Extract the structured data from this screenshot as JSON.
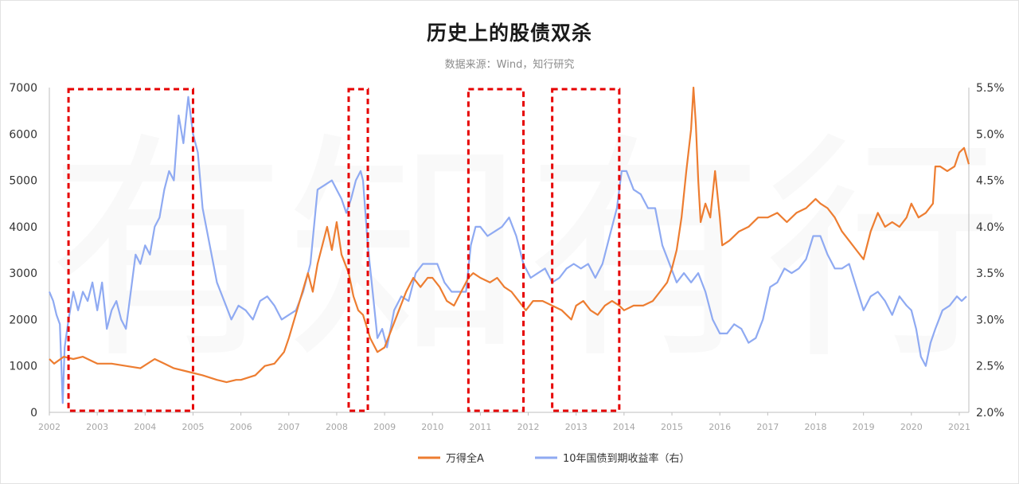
{
  "title": "历史上的股债双杀",
  "subtitle": "数据来源：Wind，知行研究",
  "watermark": "有知有行",
  "colors": {
    "equity": "#ed7d31",
    "bond": "#8faaf2",
    "highlight": "#e60000",
    "axis": "#bfbfbf"
  },
  "chart_data": {
    "type": "line",
    "x_ticks": [
      "2002",
      "2003",
      "2004",
      "2005",
      "2006",
      "2007",
      "2008",
      "2009",
      "2010",
      "2011",
      "2012",
      "2013",
      "2014",
      "2015",
      "2016",
      "2017",
      "2018",
      "2019",
      "2020",
      "2021"
    ],
    "y_left": {
      "min": 0,
      "max": 7000,
      "ticks": [
        "0",
        "1000",
        "2000",
        "3000",
        "4000",
        "5000",
        "6000",
        "7000"
      ]
    },
    "y_right": {
      "min": 2.0,
      "max": 5.5,
      "ticks": [
        "2.0%",
        "2.5%",
        "3.0%",
        "3.5%",
        "4.0%",
        "4.5%",
        "5.0%",
        "5.5%"
      ]
    },
    "highlight_periods": [
      {
        "start": 2002.4,
        "end": 2005.0
      },
      {
        "start": 2008.25,
        "end": 2008.65
      },
      {
        "start": 2010.75,
        "end": 2011.9
      },
      {
        "start": 2012.5,
        "end": 2013.9
      }
    ],
    "series": [
      {
        "name": "万得全A",
        "axis": "left",
        "points": [
          [
            2002.0,
            1150
          ],
          [
            2002.1,
            1050
          ],
          [
            2002.3,
            1200
          ],
          [
            2002.5,
            1150
          ],
          [
            2002.7,
            1200
          ],
          [
            2002.9,
            1100
          ],
          [
            2003.0,
            1050
          ],
          [
            2003.3,
            1050
          ],
          [
            2003.6,
            1000
          ],
          [
            2003.9,
            950
          ],
          [
            2004.2,
            1150
          ],
          [
            2004.4,
            1050
          ],
          [
            2004.6,
            950
          ],
          [
            2004.8,
            900
          ],
          [
            2005.0,
            850
          ],
          [
            2005.2,
            800
          ],
          [
            2005.5,
            700
          ],
          [
            2005.7,
            650
          ],
          [
            2005.9,
            700
          ],
          [
            2006.0,
            700
          ],
          [
            2006.3,
            800
          ],
          [
            2006.5,
            1000
          ],
          [
            2006.7,
            1050
          ],
          [
            2006.9,
            1300
          ],
          [
            2007.0,
            1600
          ],
          [
            2007.2,
            2300
          ],
          [
            2007.4,
            3000
          ],
          [
            2007.5,
            2600
          ],
          [
            2007.6,
            3200
          ],
          [
            2007.8,
            4000
          ],
          [
            2007.9,
            3500
          ],
          [
            2008.0,
            4100
          ],
          [
            2008.1,
            3400
          ],
          [
            2008.25,
            3000
          ],
          [
            2008.35,
            2500
          ],
          [
            2008.45,
            2200
          ],
          [
            2008.55,
            2100
          ],
          [
            2008.7,
            1600
          ],
          [
            2008.85,
            1300
          ],
          [
            2009.0,
            1400
          ],
          [
            2009.15,
            1800
          ],
          [
            2009.3,
            2200
          ],
          [
            2009.45,
            2600
          ],
          [
            2009.6,
            2900
          ],
          [
            2009.75,
            2700
          ],
          [
            2009.9,
            2900
          ],
          [
            2010.0,
            2900
          ],
          [
            2010.15,
            2700
          ],
          [
            2010.3,
            2400
          ],
          [
            2010.45,
            2300
          ],
          [
            2010.6,
            2600
          ],
          [
            2010.75,
            2900
          ],
          [
            2010.85,
            3000
          ],
          [
            2011.0,
            2900
          ],
          [
            2011.2,
            2800
          ],
          [
            2011.35,
            2900
          ],
          [
            2011.5,
            2700
          ],
          [
            2011.65,
            2600
          ],
          [
            2011.8,
            2400
          ],
          [
            2011.95,
            2200
          ],
          [
            2012.1,
            2400
          ],
          [
            2012.3,
            2400
          ],
          [
            2012.5,
            2300
          ],
          [
            2012.7,
            2200
          ],
          [
            2012.9,
            2000
          ],
          [
            2013.0,
            2300
          ],
          [
            2013.15,
            2400
          ],
          [
            2013.3,
            2200
          ],
          [
            2013.45,
            2100
          ],
          [
            2013.6,
            2300
          ],
          [
            2013.75,
            2400
          ],
          [
            2013.9,
            2300
          ],
          [
            2014.0,
            2200
          ],
          [
            2014.2,
            2300
          ],
          [
            2014.4,
            2300
          ],
          [
            2014.6,
            2400
          ],
          [
            2014.75,
            2600
          ],
          [
            2014.9,
            2800
          ],
          [
            2015.0,
            3100
          ],
          [
            2015.1,
            3500
          ],
          [
            2015.2,
            4200
          ],
          [
            2015.3,
            5200
          ],
          [
            2015.4,
            6100
          ],
          [
            2015.45,
            7000
          ],
          [
            2015.5,
            6200
          ],
          [
            2015.55,
            5000
          ],
          [
            2015.6,
            4100
          ],
          [
            2015.7,
            4500
          ],
          [
            2015.8,
            4200
          ],
          [
            2015.9,
            5200
          ],
          [
            2016.0,
            4200
          ],
          [
            2016.05,
            3600
          ],
          [
            2016.2,
            3700
          ],
          [
            2016.4,
            3900
          ],
          [
            2016.6,
            4000
          ],
          [
            2016.8,
            4200
          ],
          [
            2017.0,
            4200
          ],
          [
            2017.2,
            4300
          ],
          [
            2017.4,
            4100
          ],
          [
            2017.6,
            4300
          ],
          [
            2017.8,
            4400
          ],
          [
            2018.0,
            4600
          ],
          [
            2018.1,
            4500
          ],
          [
            2018.25,
            4400
          ],
          [
            2018.4,
            4200
          ],
          [
            2018.55,
            3900
          ],
          [
            2018.7,
            3700
          ],
          [
            2018.85,
            3500
          ],
          [
            2019.0,
            3300
          ],
          [
            2019.15,
            3900
          ],
          [
            2019.3,
            4300
          ],
          [
            2019.45,
            4000
          ],
          [
            2019.6,
            4100
          ],
          [
            2019.75,
            4000
          ],
          [
            2019.9,
            4200
          ],
          [
            2020.0,
            4500
          ],
          [
            2020.15,
            4200
          ],
          [
            2020.3,
            4300
          ],
          [
            2020.45,
            4500
          ],
          [
            2020.5,
            5300
          ],
          [
            2020.6,
            5300
          ],
          [
            2020.75,
            5200
          ],
          [
            2020.9,
            5300
          ],
          [
            2021.0,
            5600
          ],
          [
            2021.1,
            5700
          ],
          [
            2021.2,
            5350
          ]
        ]
      },
      {
        "name": "10年国债到期收益率（右）",
        "axis": "right",
        "points": [
          [
            2002.0,
            3.3
          ],
          [
            2002.08,
            3.2
          ],
          [
            2002.15,
            3.05
          ],
          [
            2002.22,
            2.95
          ],
          [
            2002.28,
            2.1
          ],
          [
            2002.32,
            2.7
          ],
          [
            2002.4,
            3.0
          ],
          [
            2002.5,
            3.3
          ],
          [
            2002.6,
            3.1
          ],
          [
            2002.7,
            3.3
          ],
          [
            2002.8,
            3.2
          ],
          [
            2002.9,
            3.4
          ],
          [
            2003.0,
            3.1
          ],
          [
            2003.1,
            3.4
          ],
          [
            2003.2,
            2.9
          ],
          [
            2003.3,
            3.1
          ],
          [
            2003.4,
            3.2
          ],
          [
            2003.5,
            3.0
          ],
          [
            2003.6,
            2.9
          ],
          [
            2003.7,
            3.3
          ],
          [
            2003.8,
            3.7
          ],
          [
            2003.9,
            3.6
          ],
          [
            2004.0,
            3.8
          ],
          [
            2004.1,
            3.7
          ],
          [
            2004.2,
            4.0
          ],
          [
            2004.3,
            4.1
          ],
          [
            2004.4,
            4.4
          ],
          [
            2004.5,
            4.6
          ],
          [
            2004.6,
            4.5
          ],
          [
            2004.7,
            5.2
          ],
          [
            2004.8,
            4.9
          ],
          [
            2004.9,
            5.4
          ],
          [
            2005.0,
            5.0
          ],
          [
            2005.1,
            4.8
          ],
          [
            2005.2,
            4.2
          ],
          [
            2005.35,
            3.8
          ],
          [
            2005.5,
            3.4
          ],
          [
            2005.65,
            3.2
          ],
          [
            2005.8,
            3.0
          ],
          [
            2005.95,
            3.15
          ],
          [
            2006.1,
            3.1
          ],
          [
            2006.25,
            3.0
          ],
          [
            2006.4,
            3.2
          ],
          [
            2006.55,
            3.25
          ],
          [
            2006.7,
            3.15
          ],
          [
            2006.85,
            3.0
          ],
          [
            2007.0,
            3.05
          ],
          [
            2007.15,
            3.1
          ],
          [
            2007.3,
            3.3
          ],
          [
            2007.45,
            3.6
          ],
          [
            2007.6,
            4.4
          ],
          [
            2007.75,
            4.45
          ],
          [
            2007.9,
            4.5
          ],
          [
            2008.0,
            4.4
          ],
          [
            2008.1,
            4.3
          ],
          [
            2008.2,
            4.15
          ],
          [
            2008.3,
            4.3
          ],
          [
            2008.4,
            4.5
          ],
          [
            2008.5,
            4.6
          ],
          [
            2008.55,
            4.5
          ],
          [
            2008.65,
            3.8
          ],
          [
            2008.75,
            3.3
          ],
          [
            2008.85,
            2.8
          ],
          [
            2008.95,
            2.9
          ],
          [
            2009.05,
            2.7
          ],
          [
            2009.2,
            3.1
          ],
          [
            2009.35,
            3.25
          ],
          [
            2009.5,
            3.2
          ],
          [
            2009.65,
            3.5
          ],
          [
            2009.8,
            3.6
          ],
          [
            2009.95,
            3.6
          ],
          [
            2010.1,
            3.6
          ],
          [
            2010.25,
            3.4
          ],
          [
            2010.4,
            3.3
          ],
          [
            2010.55,
            3.3
          ],
          [
            2010.7,
            3.3
          ],
          [
            2010.8,
            3.8
          ],
          [
            2010.9,
            4.0
          ],
          [
            2011.0,
            4.0
          ],
          [
            2011.15,
            3.9
          ],
          [
            2011.3,
            3.95
          ],
          [
            2011.45,
            4.0
          ],
          [
            2011.6,
            4.1
          ],
          [
            2011.75,
            3.9
          ],
          [
            2011.9,
            3.6
          ],
          [
            2012.05,
            3.45
          ],
          [
            2012.2,
            3.5
          ],
          [
            2012.35,
            3.55
          ],
          [
            2012.5,
            3.4
          ],
          [
            2012.65,
            3.45
          ],
          [
            2012.8,
            3.55
          ],
          [
            2012.95,
            3.6
          ],
          [
            2013.1,
            3.55
          ],
          [
            2013.25,
            3.6
          ],
          [
            2013.4,
            3.45
          ],
          [
            2013.55,
            3.6
          ],
          [
            2013.7,
            3.9
          ],
          [
            2013.85,
            4.2
          ],
          [
            2013.95,
            4.6
          ],
          [
            2014.05,
            4.6
          ],
          [
            2014.2,
            4.4
          ],
          [
            2014.35,
            4.35
          ],
          [
            2014.5,
            4.2
          ],
          [
            2014.65,
            4.2
          ],
          [
            2014.8,
            3.8
          ],
          [
            2014.95,
            3.6
          ],
          [
            2015.1,
            3.4
          ],
          [
            2015.25,
            3.5
          ],
          [
            2015.4,
            3.4
          ],
          [
            2015.55,
            3.5
          ],
          [
            2015.7,
            3.3
          ],
          [
            2015.85,
            3.0
          ],
          [
            2016.0,
            2.85
          ],
          [
            2016.15,
            2.85
          ],
          [
            2016.3,
            2.95
          ],
          [
            2016.45,
            2.9
          ],
          [
            2016.6,
            2.75
          ],
          [
            2016.75,
            2.8
          ],
          [
            2016.9,
            3.0
          ],
          [
            2017.05,
            3.35
          ],
          [
            2017.2,
            3.4
          ],
          [
            2017.35,
            3.55
          ],
          [
            2017.5,
            3.5
          ],
          [
            2017.65,
            3.55
          ],
          [
            2017.8,
            3.65
          ],
          [
            2017.95,
            3.9
          ],
          [
            2018.1,
            3.9
          ],
          [
            2018.25,
            3.7
          ],
          [
            2018.4,
            3.55
          ],
          [
            2018.55,
            3.55
          ],
          [
            2018.7,
            3.6
          ],
          [
            2018.85,
            3.35
          ],
          [
            2019.0,
            3.1
          ],
          [
            2019.15,
            3.25
          ],
          [
            2019.3,
            3.3
          ],
          [
            2019.45,
            3.2
          ],
          [
            2019.6,
            3.05
          ],
          [
            2019.75,
            3.25
          ],
          [
            2019.9,
            3.15
          ],
          [
            2020.0,
            3.1
          ],
          [
            2020.1,
            2.9
          ],
          [
            2020.2,
            2.6
          ],
          [
            2020.3,
            2.5
          ],
          [
            2020.4,
            2.75
          ],
          [
            2020.5,
            2.9
          ],
          [
            2020.65,
            3.1
          ],
          [
            2020.8,
            3.15
          ],
          [
            2020.95,
            3.25
          ],
          [
            2021.05,
            3.2
          ],
          [
            2021.15,
            3.25
          ]
        ]
      }
    ]
  }
}
